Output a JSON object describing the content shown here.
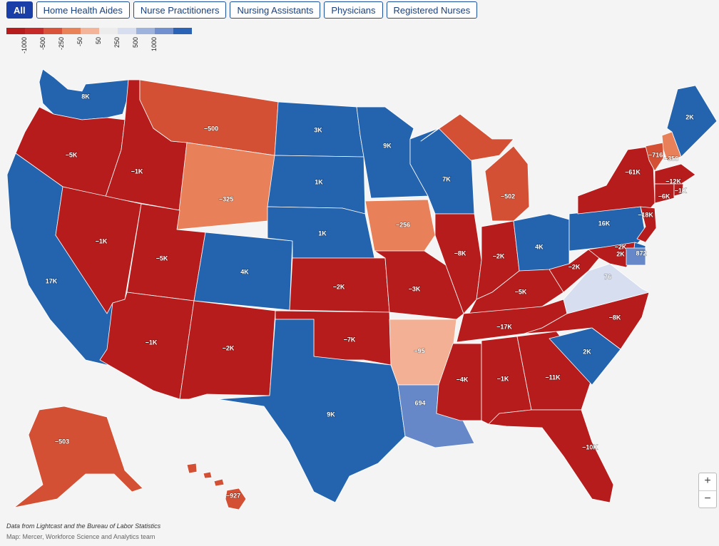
{
  "tabs": [
    {
      "label": "All",
      "active": true
    },
    {
      "label": "Home Health Aides",
      "active": false
    },
    {
      "label": "Nurse Practitioners",
      "active": false
    },
    {
      "label": "Nursing Assistants",
      "active": false
    },
    {
      "label": "Physicians",
      "active": false
    },
    {
      "label": "Registered Nurses",
      "active": false
    }
  ],
  "legend": {
    "colors": [
      "#b71c1c",
      "#c62a28",
      "#d9533a",
      "#e98257",
      "#f4b49a",
      "#ececec",
      "#d6def0",
      "#9db3de",
      "#6f8fcf",
      "#2a62b5"
    ],
    "ticks": [
      "-1000",
      "-500",
      "-250",
      "-50",
      "50",
      "250",
      "500",
      "1000"
    ]
  },
  "colors": {
    "deep_red": "#b71c1c",
    "red_orange": "#d35035",
    "orange": "#e8805a",
    "light_orange": "#f4b094",
    "pale_blue": "#d6def0",
    "mid_blue": "#6688c8",
    "blue": "#2463ad"
  },
  "states": [
    {
      "id": "WA",
      "label": "8K"
    },
    {
      "id": "OR",
      "label": "-5K"
    },
    {
      "id": "CA",
      "label": "17K"
    },
    {
      "id": "ID",
      "label": "-1K"
    },
    {
      "id": "NV",
      "label": "-1K"
    },
    {
      "id": "MT",
      "label": "-500"
    },
    {
      "id": "WY",
      "label": "-325"
    },
    {
      "id": "UT",
      "label": "-5K"
    },
    {
      "id": "AZ",
      "label": "-1K"
    },
    {
      "id": "CO",
      "label": "4K"
    },
    {
      "id": "NM",
      "label": "-2K"
    },
    {
      "id": "ND",
      "label": "3K"
    },
    {
      "id": "SD",
      "label": "1K"
    },
    {
      "id": "NE",
      "label": "1K"
    },
    {
      "id": "KS",
      "label": "-2K"
    },
    {
      "id": "OK",
      "label": "-7K"
    },
    {
      "id": "TX",
      "label": "9K"
    },
    {
      "id": "MN",
      "label": "9K"
    },
    {
      "id": "IA",
      "label": "-256"
    },
    {
      "id": "MO",
      "label": "-3K"
    },
    {
      "id": "AR",
      "label": "-95"
    },
    {
      "id": "LA",
      "label": "694"
    },
    {
      "id": "WI",
      "label": "7K"
    },
    {
      "id": "IL",
      "label": "-8K"
    },
    {
      "id": "MS",
      "label": "-4K"
    },
    {
      "id": "MI",
      "label": "-502"
    },
    {
      "id": "IN",
      "label": "-2K"
    },
    {
      "id": "KY",
      "label": "-5K"
    },
    {
      "id": "TN",
      "label": "-17K"
    },
    {
      "id": "AL",
      "label": "-1K"
    },
    {
      "id": "OH",
      "label": "4K"
    },
    {
      "id": "GA",
      "label": "-11K"
    },
    {
      "id": "FL",
      "label": "-10K"
    },
    {
      "id": "SC",
      "label": "2K"
    },
    {
      "id": "NC",
      "label": "-8K"
    },
    {
      "id": "VA",
      "label": "76"
    },
    {
      "id": "WV",
      "label": "-2K"
    },
    {
      "id": "PA",
      "label": "16K"
    },
    {
      "id": "NY",
      "label": "-61K"
    },
    {
      "id": "VT",
      "label": "-716"
    },
    {
      "id": "NH",
      "label": "-356"
    },
    {
      "id": "ME",
      "label": "2K"
    },
    {
      "id": "MA",
      "label": "-12K"
    },
    {
      "id": "CT",
      "label": "-6K"
    },
    {
      "id": "RI",
      "label": "-1K"
    },
    {
      "id": "NJ",
      "label": "-18K"
    },
    {
      "id": "DE",
      "label": "2K"
    },
    {
      "id": "MD",
      "label": "-2K"
    },
    {
      "id": "DC",
      "label": "872"
    },
    {
      "id": "AK",
      "label": "-503"
    },
    {
      "id": "HI",
      "label": "-927"
    }
  ],
  "zoom": {
    "in_label": "+",
    "out_label": "−"
  },
  "footer": {
    "source": "Data from Lightcast and the Bureau of Labor Statistics",
    "credit": "Map: Mercer, Workforce Science and Analytics team"
  }
}
